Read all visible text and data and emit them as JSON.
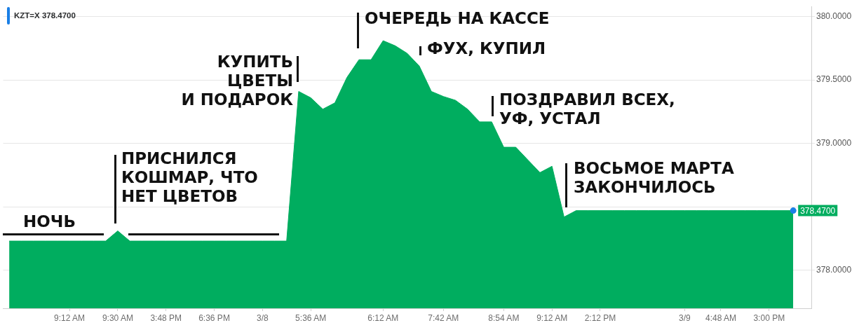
{
  "chart_data": {
    "type": "area",
    "title": "KZT=X 378.4700",
    "categories": [
      null,
      null,
      null,
      null,
      null,
      "9:12 AM",
      null,
      null,
      null,
      "9:30 AM",
      null,
      null,
      null,
      "3:48 PM",
      null,
      null,
      null,
      "6:36 PM",
      null,
      null,
      null,
      "3/8",
      null,
      null,
      null,
      "5:36 AM",
      null,
      null,
      null,
      null,
      null,
      "6:12 AM",
      null,
      null,
      null,
      null,
      "7:42 AM",
      null,
      null,
      null,
      null,
      "8:54 AM",
      null,
      null,
      null,
      "9:12 AM",
      null,
      null,
      null,
      "2:12 PM",
      null,
      null,
      null,
      null,
      null,
      null,
      "3/9",
      null,
      null,
      "4:48 AM",
      null,
      null,
      null,
      "3:00 PM",
      null,
      null,
      null
    ],
    "series": [
      {
        "color": "#00ad5f",
        "values": [
          378.23,
          378.23,
          378.23,
          378.23,
          378.23,
          378.23,
          378.23,
          378.23,
          378.23,
          378.31,
          378.23,
          378.23,
          378.23,
          378.23,
          378.23,
          378.23,
          378.23,
          378.23,
          378.23,
          378.23,
          378.23,
          378.23,
          378.23,
          378.23,
          379.41,
          379.36,
          379.27,
          379.32,
          379.52,
          379.66,
          379.66,
          379.81,
          379.77,
          379.71,
          379.61,
          379.41,
          379.37,
          379.34,
          379.27,
          379.17,
          379.17,
          378.97,
          378.97,
          378.87,
          378.77,
          378.82,
          378.42,
          378.47,
          378.47,
          378.47,
          378.47,
          378.47,
          378.47,
          378.47,
          378.47,
          378.47,
          378.47,
          378.47,
          378.47,
          378.47,
          378.47,
          378.47,
          378.47,
          378.47,
          378.47,
          378.47,
          null
        ],
        "value_labels": [
          null,
          null,
          null,
          null,
          null,
          null,
          null,
          null,
          null,
          null,
          null,
          null,
          null,
          null,
          null,
          null,
          null,
          null,
          null,
          null,
          null,
          null,
          null,
          null,
          null,
          null,
          null,
          null,
          null,
          null,
          null,
          null,
          null,
          null,
          null,
          null,
          null,
          null,
          null,
          null,
          null,
          null,
          null,
          null,
          null,
          null,
          null,
          null,
          null,
          null,
          null,
          null,
          null,
          null,
          null,
          null,
          null,
          null,
          null,
          null,
          null,
          null,
          null,
          null,
          null,
          "378.4700",
          null
        ]
      },
      {
        "type": "scatter",
        "color": "#1a7fe6",
        "marker": "circle",
        "values": [
          null,
          null,
          null,
          null,
          null,
          null,
          null,
          null,
          null,
          null,
          null,
          null,
          null,
          null,
          null,
          null,
          null,
          null,
          null,
          null,
          null,
          null,
          null,
          null,
          null,
          null,
          null,
          null,
          null,
          null,
          null,
          null,
          null,
          null,
          null,
          null,
          null,
          null,
          null,
          null,
          null,
          null,
          null,
          null,
          null,
          null,
          null,
          null,
          null,
          null,
          null,
          null,
          null,
          null,
          null,
          null,
          null,
          null,
          null,
          null,
          null,
          null,
          null,
          null,
          null,
          378.47,
          null
        ]
      }
    ],
    "ylim": [
      377.7,
      380.08
    ],
    "yticks": [
      {
        "value": 378,
        "label": "378.0000"
      },
      {
        "value": 378.5,
        "label": null
      },
      {
        "value": 379,
        "label": "379.0000"
      },
      {
        "value": 379.5,
        "label": "379.5000"
      },
      {
        "value": 380,
        "label": "380.0000"
      }
    ],
    "grid": "y",
    "annotations": [
      "НОЧЬ",
      "ПРИСНИЛСЯ\nКОШМАР, ЧТО\nНЕТ ЦВЕТОВ",
      "КУПИТЬ\nЦВЕТЫ\nИ ПОДАРОК",
      "ОЧЕРЕДЬ НА КАССЕ",
      "ФУХ, КУПИЛ",
      "ПОЗДРАВИЛ ВСЕХ,\nУФ, УСТАЛ",
      "ВОСЬМОЕ МАРТА\nЗАКОНЧИЛОСЬ"
    ]
  }
}
